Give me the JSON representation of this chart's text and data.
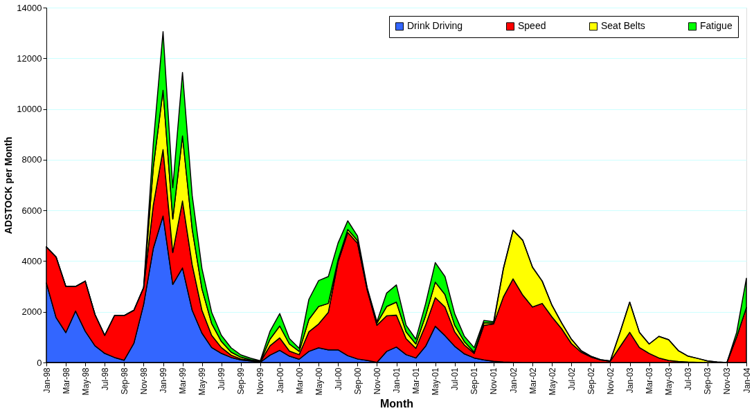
{
  "chart_data": {
    "type": "area",
    "stacked": true,
    "xlabel": "Month",
    "ylabel": "ADSTOCK per Month",
    "categories": [
      "Jan-98",
      null,
      "Mar-98",
      null,
      "May-98",
      null,
      "Jul-98",
      null,
      "Sep-98",
      null,
      "Nov-98",
      null,
      "Jan-99",
      null,
      "Mar-99",
      null,
      "May-99",
      null,
      "Jul-99",
      null,
      "Sep-99",
      null,
      "Nov-99",
      null,
      "Jan-00",
      null,
      "Mar-00",
      null,
      "May-00",
      null,
      "Jul-00",
      null,
      "Sep-00",
      null,
      "Nov-00",
      null,
      "Jan-01",
      null,
      "Mar-01",
      null,
      "May-01",
      null,
      "Jul-01",
      null,
      "Sep-01",
      null,
      "Nov-01",
      null,
      "Jan-02",
      null,
      "Mar-02",
      null,
      "May-02",
      null,
      "Jul-02",
      null,
      "Sep-02",
      null,
      "Nov-02",
      null,
      "Jan-03",
      null,
      "Mar-03",
      null,
      "May-03",
      null,
      "Jul-03",
      null,
      "Sep-03",
      null,
      "Nov-03",
      null,
      "Jan-04"
    ],
    "ylim": [
      0,
      14000
    ],
    "yticks": [
      0,
      2000,
      4000,
      6000,
      8000,
      10000,
      12000,
      14000
    ],
    "grid": "y",
    "legend": "top right",
    "series": [
      {
        "name": "Drink Driving",
        "color": "#3366ff",
        "values": [
          3140,
          1770,
          1180,
          2030,
          1230,
          660,
          360,
          200,
          90,
          760,
          2290,
          4510,
          5780,
          3080,
          3730,
          2060,
          1160,
          590,
          360,
          200,
          100,
          60,
          10,
          290,
          480,
          250,
          130,
          440,
          580,
          500,
          500,
          270,
          140,
          80,
          10,
          440,
          610,
          310,
          180,
          640,
          1430,
          1060,
          640,
          340,
          180,
          100,
          50,
          20,
          10,
          0,
          0,
          0,
          0,
          0,
          0,
          0,
          0,
          0,
          0,
          0,
          0,
          0,
          0,
          0,
          0,
          0,
          0,
          0,
          0,
          0,
          0,
          0,
          0
        ]
      },
      {
        "name": "Speed",
        "color": "#ff0000",
        "values": [
          1420,
          2390,
          1820,
          970,
          1980,
          1230,
          710,
          1650,
          1760,
          1300,
          660,
          1700,
          2620,
          1260,
          2640,
          1790,
          900,
          480,
          230,
          90,
          40,
          20,
          10,
          370,
          490,
          200,
          180,
          770,
          940,
          1480,
          3470,
          4860,
          4570,
          2780,
          1460,
          1400,
          1260,
          630,
          380,
          830,
          1130,
          1130,
          570,
          350,
          180,
          1370,
          1470,
          2560,
          3290,
          2660,
          2190,
          2330,
          1800,
          1330,
          750,
          410,
          220,
          100,
          50,
          620,
          1190,
          590,
          360,
          180,
          80,
          40,
          20,
          10,
          0,
          0,
          0,
          1010,
          2170
        ]
      },
      {
        "name": "Seat Belts",
        "color": "#ffff00",
        "values": [
          0,
          0,
          0,
          0,
          0,
          0,
          0,
          0,
          0,
          0,
          0,
          1510,
          2340,
          1320,
          2570,
          1410,
          850,
          470,
          240,
          120,
          70,
          30,
          20,
          260,
          470,
          280,
          130,
          490,
          690,
          350,
          90,
          120,
          100,
          50,
          80,
          370,
          510,
          270,
          170,
          370,
          610,
          490,
          260,
          130,
          50,
          90,
          40,
          1110,
          1920,
          2160,
          1570,
          880,
          460,
          230,
          170,
          60,
          30,
          10,
          10,
          570,
          1190,
          600,
          370,
          850,
          820,
          430,
          230,
          150,
          60,
          20,
          0,
          0,
          0
        ]
      },
      {
        "name": "Fatigue",
        "color": "#00ff00",
        "values": [
          0,
          0,
          0,
          0,
          0,
          0,
          0,
          0,
          0,
          0,
          0,
          940,
          2310,
          1230,
          2500,
          1320,
          800,
          440,
          240,
          170,
          90,
          60,
          30,
          310,
          490,
          210,
          120,
          790,
          1020,
          1060,
          650,
          340,
          180,
          40,
          60,
          530,
          680,
          260,
          190,
          470,
          770,
          710,
          450,
          210,
          180,
          100,
          50,
          20,
          0,
          0,
          0,
          0,
          0,
          0,
          0,
          0,
          0,
          0,
          0,
          0,
          0,
          0,
          0,
          0,
          0,
          0,
          0,
          0,
          0,
          0,
          0,
          180,
          1150
        ]
      }
    ]
  }
}
